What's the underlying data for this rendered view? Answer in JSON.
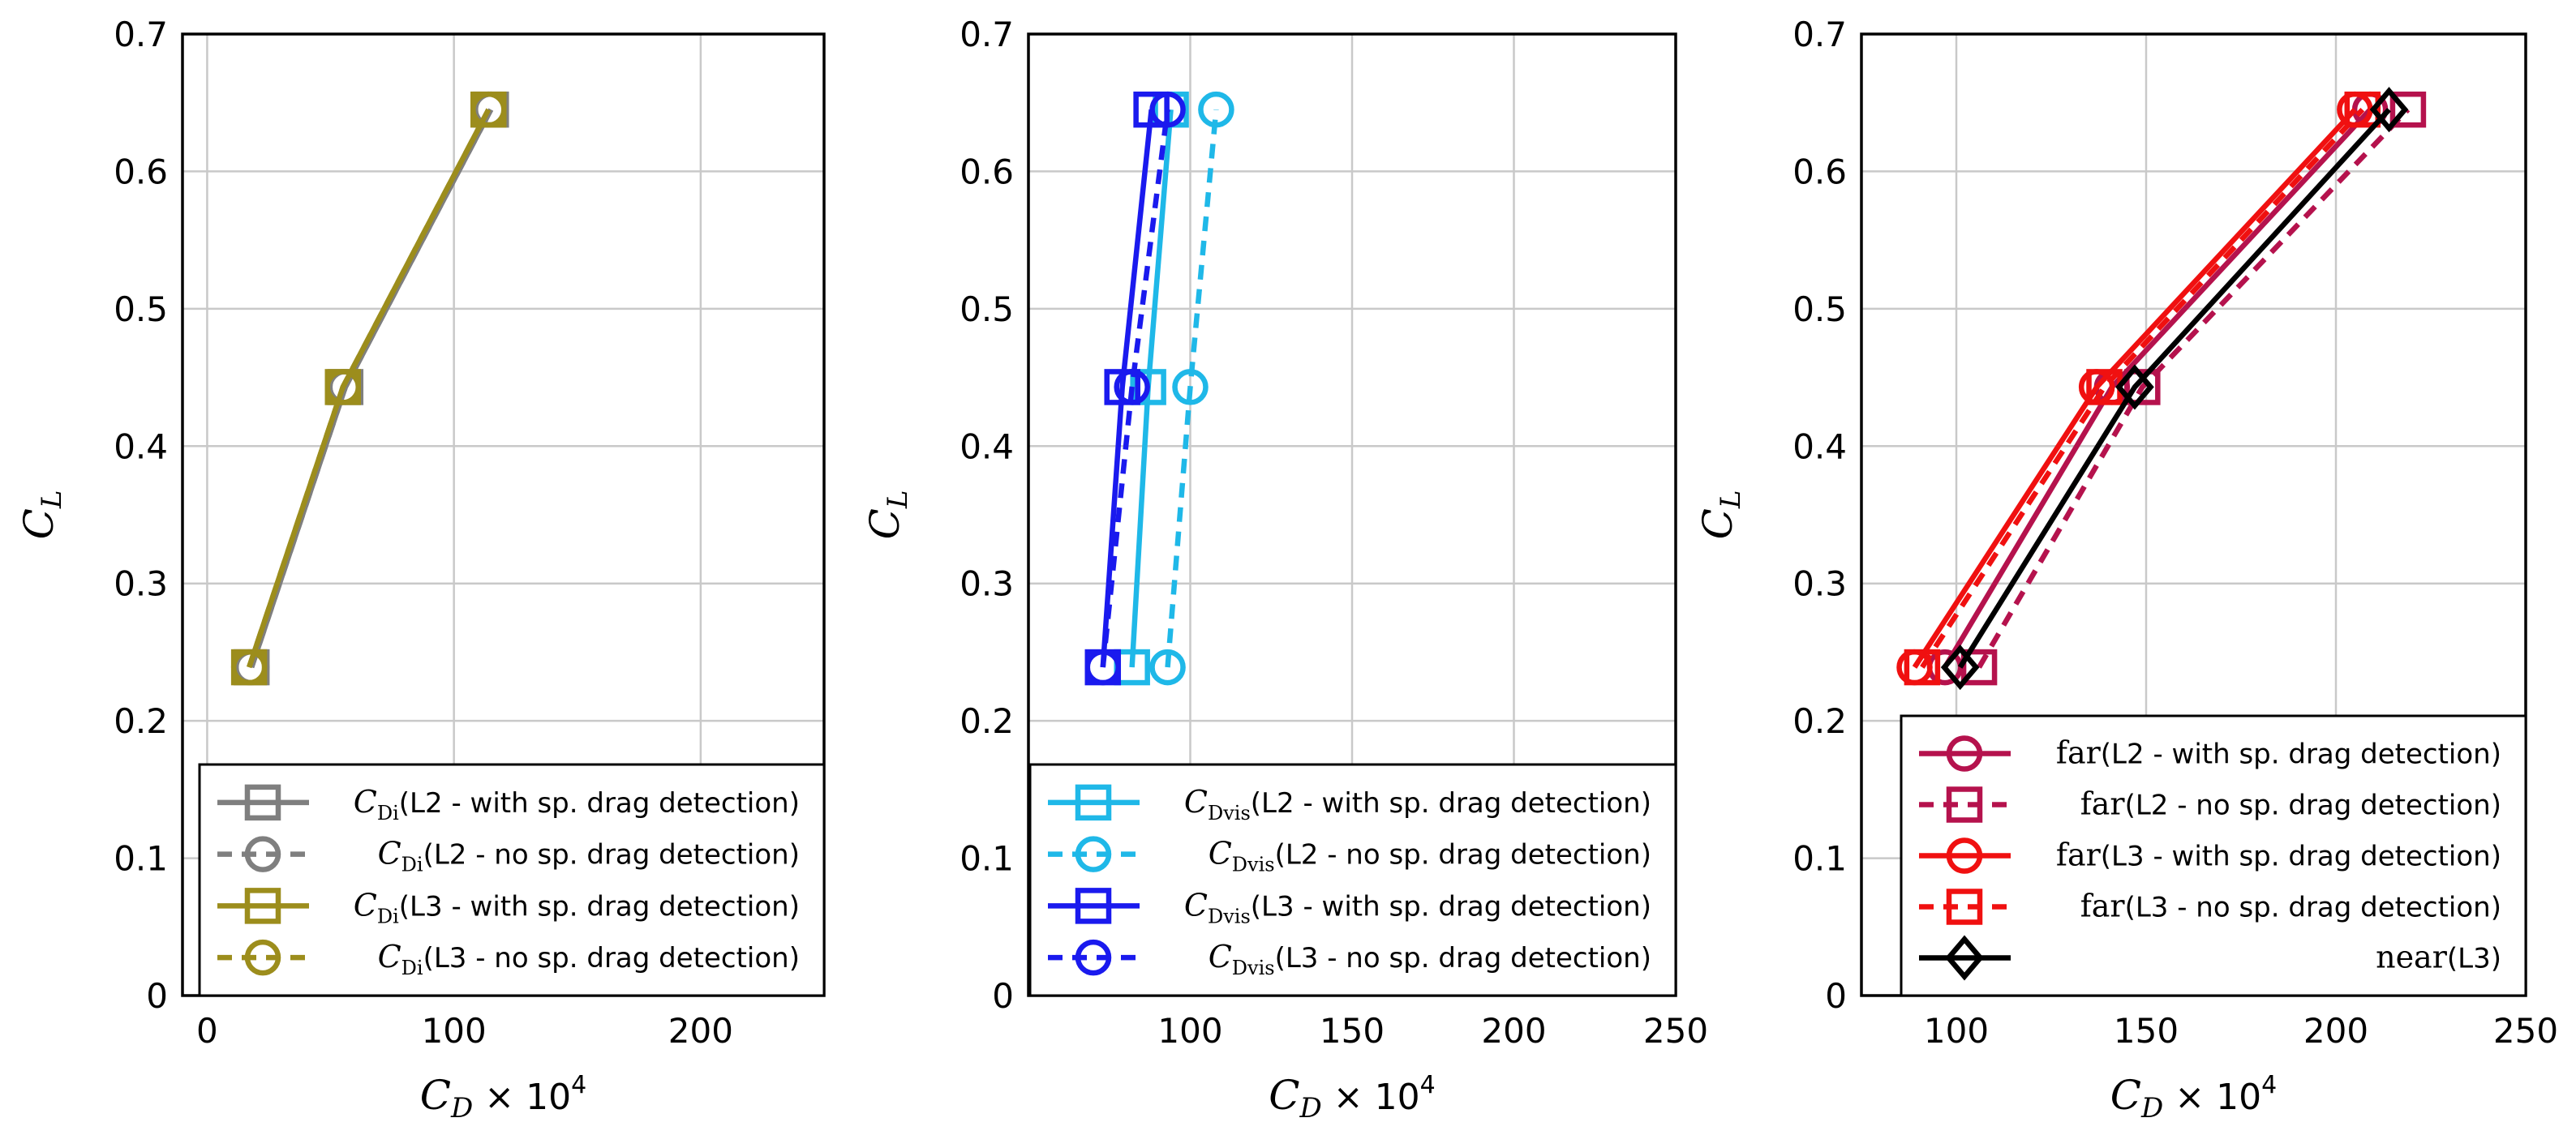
{
  "chart_data": [
    {
      "type": "line",
      "panel": "left",
      "xlabel": "C_D × 10^4",
      "ylabel": "C_L",
      "xlim": [
        -10,
        250
      ],
      "ylim": [
        0,
        0.7
      ],
      "xticks": [
        0,
        100,
        200
      ],
      "yticks": [
        0,
        0.1,
        0.2,
        0.3,
        0.4,
        0.5,
        0.6,
        0.7
      ],
      "grid": true,
      "legend_position": "bottom-right",
      "series": [
        {
          "label": "C_Di (L2 - with sp. drag detection)",
          "sym": "C",
          "sub": "Di",
          "text": "(L2 - with sp. drag detection)",
          "color": "#7f7f7f",
          "dash": "solid",
          "marker": "square",
          "x": [
            18,
            56,
            115
          ],
          "y": [
            0.239,
            0.443,
            0.645
          ]
        },
        {
          "label": "C_Di (L2 - no sp. drag detection)",
          "sym": "C",
          "sub": "Di",
          "text": "(L2 - no sp. drag detection)",
          "color": "#7f7f7f",
          "dash": "dashed",
          "marker": "circle",
          "x": [
            18,
            56,
            115
          ],
          "y": [
            0.239,
            0.443,
            0.645
          ]
        },
        {
          "label": "C_Di (L3 - with sp. drag detection)",
          "sym": "C",
          "sub": "Di",
          "text": "(L3 - with sp. drag detection)",
          "color": "#9c8d1c",
          "dash": "solid",
          "marker": "square",
          "x": [
            17,
            55,
            114
          ],
          "y": [
            0.239,
            0.443,
            0.645
          ]
        },
        {
          "label": "C_Di (L3 - no sp. drag detection)",
          "sym": "C",
          "sub": "Di",
          "text": "(L3 - no sp. drag detection)",
          "color": "#9c8d1c",
          "dash": "dashed",
          "marker": "circle",
          "x": [
            17,
            55,
            114
          ],
          "y": [
            0.239,
            0.443,
            0.645
          ]
        }
      ]
    },
    {
      "type": "line",
      "panel": "middle",
      "xlabel": "C_D × 10^4",
      "ylabel": "C_L",
      "xlim": [
        50,
        250
      ],
      "ylim": [
        0,
        0.7
      ],
      "xticks": [
        100,
        150,
        200,
        250
      ],
      "yticks": [
        0,
        0.1,
        0.2,
        0.3,
        0.4,
        0.5,
        0.6,
        0.7
      ],
      "grid": true,
      "legend_position": "bottom-right",
      "series": [
        {
          "label": "C_Dvis (L2 - with sp. drag detection)",
          "sym": "C",
          "sub": "Dvis",
          "text": "(L2 - with sp. drag detection)",
          "color": "#1fb8e8",
          "dash": "solid",
          "marker": "square",
          "x": [
            82,
            87,
            94
          ],
          "y": [
            0.239,
            0.443,
            0.645
          ]
        },
        {
          "label": "C_Dvis (L2 - no sp. drag detection)",
          "sym": "C",
          "sub": "Dvis",
          "text": "(L2 - no sp. drag detection)",
          "color": "#1fb8e8",
          "dash": "dashed",
          "marker": "circle",
          "x": [
            93,
            100,
            108
          ],
          "y": [
            0.239,
            0.443,
            0.645
          ]
        },
        {
          "label": "C_Dvis (L3 - with sp. drag detection)",
          "sym": "C",
          "sub": "Dvis",
          "text": "(L3 - with sp. drag detection)",
          "color": "#1a1aee",
          "dash": "solid",
          "marker": "square",
          "x": [
            73,
            79,
            88
          ],
          "y": [
            0.239,
            0.443,
            0.645
          ]
        },
        {
          "label": "C_Dvis (L3 - no sp. drag detection)",
          "sym": "C",
          "sub": "Dvis",
          "text": "(L3 - no sp. drag detection)",
          "color": "#1a1aee",
          "dash": "dashed",
          "marker": "circle",
          "x": [
            73,
            82,
            93
          ],
          "y": [
            0.239,
            0.443,
            0.645
          ]
        }
      ]
    },
    {
      "type": "line",
      "panel": "right",
      "xlabel": "C_D × 10^4",
      "ylabel": "C_L",
      "xlim": [
        75,
        250
      ],
      "ylim": [
        0,
        0.7
      ],
      "xticks": [
        100,
        150,
        200,
        250
      ],
      "yticks": [
        0,
        0.1,
        0.2,
        0.3,
        0.4,
        0.5,
        0.6,
        0.7
      ],
      "grid": true,
      "legend_position": "bottom-right",
      "series": [
        {
          "label": "far(L2 - with sp. drag detection)",
          "sym": "far",
          "sub": "",
          "text": "(L2 - with sp. drag detection)",
          "color": "#b5124d",
          "dash": "solid",
          "marker": "circle",
          "x": [
            97,
            141,
            209
          ],
          "y": [
            0.239,
            0.443,
            0.645
          ]
        },
        {
          "label": "far(L2 - no sp. drag detection)",
          "sym": "far",
          "sub": "",
          "text": "(L2 - no sp. drag detection)",
          "color": "#b5124d",
          "dash": "dashed",
          "marker": "square",
          "x": [
            106,
            149,
            219
          ],
          "y": [
            0.239,
            0.443,
            0.645
          ]
        },
        {
          "label": "far(L3 - with sp. drag detection)",
          "sym": "far",
          "sub": "",
          "text": "(L3 - with sp. drag detection)",
          "color": "#f01010",
          "dash": "solid",
          "marker": "circle",
          "x": [
            89,
            137,
            205
          ],
          "y": [
            0.239,
            0.443,
            0.645
          ]
        },
        {
          "label": "far(L3 - no sp. drag detection)",
          "sym": "far",
          "sub": "",
          "text": "(L3 - no sp. drag detection)",
          "color": "#f01010",
          "dash": "dashed",
          "marker": "square",
          "x": [
            91,
            139,
            207
          ],
          "y": [
            0.239,
            0.443,
            0.645
          ]
        },
        {
          "label": "near(L3)",
          "sym": "near",
          "sub": "",
          "text": "(L3)",
          "color": "#000000",
          "dash": "solid",
          "marker": "diamond",
          "x": [
            101,
            147,
            214
          ],
          "y": [
            0.239,
            0.443,
            0.645
          ]
        }
      ]
    }
  ]
}
